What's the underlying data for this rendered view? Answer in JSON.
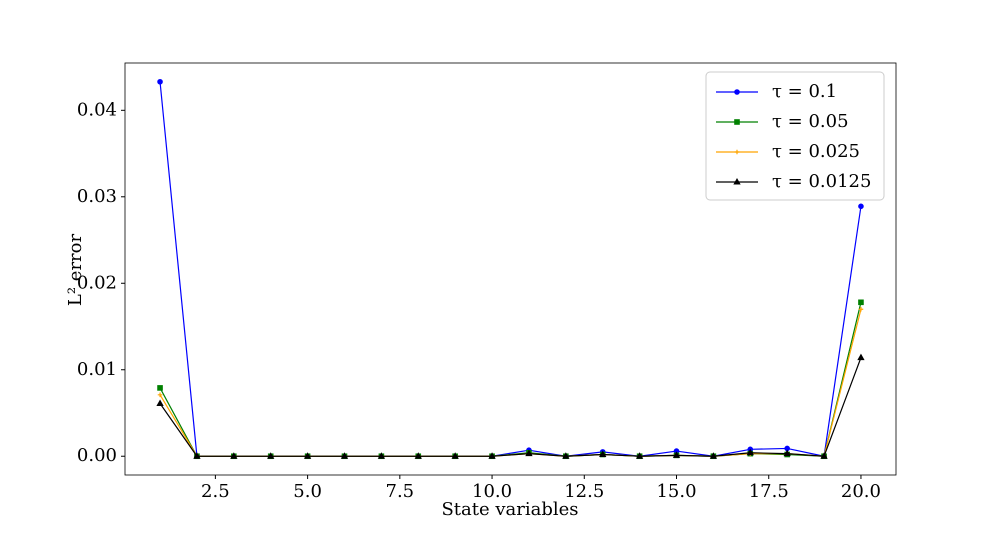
{
  "chart_data": {
    "type": "line",
    "xlabel": "State variables",
    "ylabel": "L² error",
    "xlim": [
      0.05,
      20.95
    ],
    "ylim": [
      -0.00217,
      0.04547
    ],
    "xticks": [
      {
        "value": 2.5,
        "label": "2.5"
      },
      {
        "value": 5,
        "label": "5.0"
      },
      {
        "value": 7.5,
        "label": "7.5"
      },
      {
        "value": 10,
        "label": "10.0"
      },
      {
        "value": 12.5,
        "label": "12.5"
      },
      {
        "value": 15,
        "label": "15.0"
      },
      {
        "value": 17.5,
        "label": "17.5"
      },
      {
        "value": 20,
        "label": "20.0"
      }
    ],
    "yticks": [
      {
        "value": 0,
        "label": "0.00"
      },
      {
        "value": 0.01,
        "label": "0.01"
      },
      {
        "value": 0.02,
        "label": "0.02"
      },
      {
        "value": 0.03,
        "label": "0.03"
      },
      {
        "value": 0.04,
        "label": "0.04"
      }
    ],
    "legend": "upper right",
    "x": [
      1,
      2,
      3,
      4,
      5,
      6,
      7,
      8,
      9,
      10,
      11,
      12,
      13,
      14,
      15,
      16,
      17,
      18,
      19,
      20
    ],
    "series": [
      {
        "name": "τ = 0.1",
        "color": "#0000ff",
        "marker": "circle",
        "values": [
          0.0433,
          0,
          0,
          0,
          0,
          0,
          0,
          0,
          0,
          0,
          0.0007,
          0,
          0.0005,
          0,
          0.0006,
          0,
          0.0008,
          0.0009,
          0,
          0.0289
        ]
      },
      {
        "name": "τ = 0.05",
        "color": "#008000",
        "marker": "square",
        "values": [
          0.0079,
          0,
          0,
          0,
          0,
          0,
          0,
          0,
          0,
          0,
          0.0004,
          0,
          0.0002,
          0,
          0.0001,
          0,
          0.0003,
          0.0002,
          0,
          0.0178
        ]
      },
      {
        "name": "τ = 0.025",
        "color": "#ffa500",
        "marker": "plus",
        "values": [
          0.0071,
          0,
          0,
          0,
          0,
          0,
          0,
          0,
          0,
          0,
          0.0003,
          0,
          0.0002,
          0,
          0.0001,
          0,
          0.0003,
          0.0003,
          0,
          0.017
        ]
      },
      {
        "name": "τ = 0.0125",
        "color": "#000000",
        "marker": "triangle",
        "values": [
          0.0061,
          0,
          0,
          0,
          0,
          0,
          0,
          0,
          0,
          0,
          0.0003,
          0,
          0.0002,
          0,
          0.0001,
          0,
          0.0004,
          0.0003,
          0,
          0.0114
        ]
      }
    ]
  }
}
